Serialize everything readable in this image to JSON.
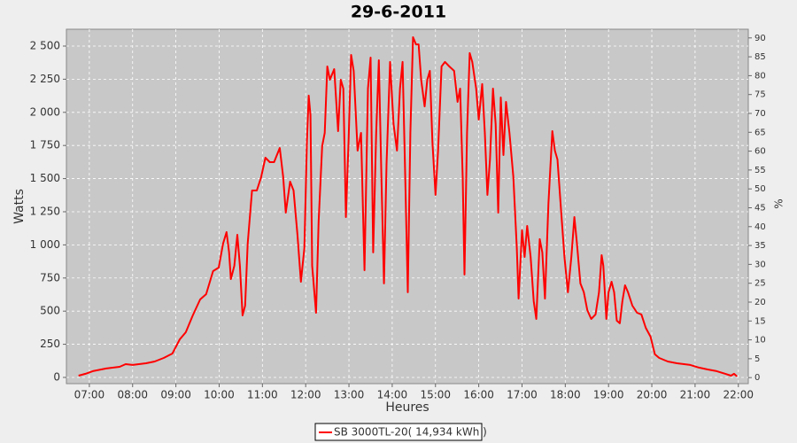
{
  "chart_data": {
    "type": "line",
    "title": "29-6-2011",
    "xlabel": "Heures",
    "ylabel": "Watts",
    "y2label": "%",
    "x": [
      6.75,
      6.91,
      7.08,
      7.39,
      7.7,
      7.84,
      8.0,
      8.31,
      8.51,
      8.72,
      8.92,
      9.09,
      9.23,
      9.39,
      9.56,
      9.7,
      9.86,
      9.99,
      10.09,
      10.17,
      10.23,
      10.27,
      10.35,
      10.42,
      10.48,
      10.54,
      10.6,
      10.66,
      10.76,
      10.87,
      10.97,
      11.07,
      11.17,
      11.27,
      11.4,
      11.48,
      11.54,
      11.64,
      11.72,
      11.81,
      11.89,
      11.97,
      12.03,
      12.07,
      12.11,
      12.15,
      12.24,
      12.3,
      12.38,
      12.44,
      12.5,
      12.56,
      12.66,
      12.75,
      12.81,
      12.87,
      12.93,
      12.99,
      13.05,
      13.11,
      13.2,
      13.28,
      13.36,
      13.44,
      13.5,
      13.56,
      13.63,
      13.69,
      13.75,
      13.81,
      13.87,
      13.95,
      14.03,
      14.11,
      14.18,
      14.24,
      14.3,
      14.36,
      14.42,
      14.48,
      14.55,
      14.61,
      14.67,
      14.75,
      14.81,
      14.87,
      14.93,
      15.0,
      15.06,
      15.14,
      15.22,
      15.32,
      15.43,
      15.51,
      15.57,
      15.63,
      15.67,
      15.73,
      15.79,
      15.85,
      15.94,
      16.0,
      16.08,
      16.14,
      16.2,
      16.26,
      16.33,
      16.39,
      16.45,
      16.51,
      16.57,
      16.63,
      16.71,
      16.8,
      16.88,
      16.92,
      17.0,
      17.06,
      17.12,
      17.2,
      17.27,
      17.33,
      17.41,
      17.47,
      17.53,
      17.61,
      17.7,
      17.76,
      17.82,
      17.9,
      17.98,
      18.06,
      18.14,
      18.21,
      18.27,
      18.35,
      18.43,
      18.51,
      18.6,
      18.7,
      18.78,
      18.84,
      18.88,
      18.95,
      19.0,
      19.07,
      19.13,
      19.19,
      19.26,
      19.32,
      19.38,
      19.45,
      19.55,
      19.66,
      19.76,
      19.86,
      19.97,
      20.07,
      20.17,
      20.37,
      20.58,
      20.89,
      21.09,
      21.29,
      21.5,
      21.7,
      21.83,
      21.9,
      21.97
    ],
    "series": [
      {
        "name": "SB 3000TL-20( 14,934 kWh )",
        "color": "#ff0000",
        "values": [
          13,
          27,
          47,
          67,
          80,
          100,
          94,
          107,
          120,
          147,
          180,
          287,
          341,
          468,
          588,
          628,
          802,
          829,
          1010,
          1096,
          943,
          742,
          842,
          1076,
          842,
          468,
          541,
          1010,
          1410,
          1410,
          1511,
          1658,
          1624,
          1624,
          1731,
          1511,
          1243,
          1477,
          1410,
          1076,
          722,
          976,
          1778,
          2126,
          1979,
          842,
          488,
          1176,
          1745,
          1845,
          2346,
          2246,
          2326,
          1858,
          2246,
          2179,
          1210,
          1778,
          2433,
          2313,
          1711,
          1845,
          809,
          2179,
          2413,
          943,
          1845,
          2393,
          1511,
          709,
          1611,
          2380,
          1912,
          1711,
          2179,
          2380,
          1511,
          642,
          1845,
          2567,
          2513,
          2513,
          2246,
          2045,
          2246,
          2313,
          1778,
          1377,
          1711,
          2346,
          2380,
          2346,
          2313,
          2079,
          2179,
          1511,
          776,
          1845,
          2447,
          2380,
          2179,
          1945,
          2213,
          1845,
          1377,
          1644,
          2179,
          1912,
          1243,
          2112,
          1678,
          2079,
          1845,
          1511,
          976,
          595,
          1110,
          909,
          1143,
          909,
          575,
          441,
          1043,
          943,
          595,
          1310,
          1858,
          1711,
          1644,
          1277,
          909,
          642,
          909,
          1210,
          1010,
          709,
          642,
          508,
          441,
          475,
          642,
          922,
          842,
          441,
          642,
          722,
          642,
          428,
          408,
          575,
          695,
          642,
          541,
          488,
          475,
          374,
          307,
          174,
          147,
          120,
          107,
          94,
          74,
          60,
          47,
          27,
          13,
          27,
          7
        ]
      }
    ],
    "xlim": [
      6.47,
      22.23
    ],
    "xticks": [
      {
        "value": 7,
        "label": "07:00"
      },
      {
        "value": 8,
        "label": "08:00"
      },
      {
        "value": 9,
        "label": "09:00"
      },
      {
        "value": 10,
        "label": "10:00"
      },
      {
        "value": 11,
        "label": "11:00"
      },
      {
        "value": 12,
        "label": "12:00"
      },
      {
        "value": 13,
        "label": "13:00"
      },
      {
        "value": 14,
        "label": "14:00"
      },
      {
        "value": 15,
        "label": "15:00"
      },
      {
        "value": 16,
        "label": "16:00"
      },
      {
        "value": 17,
        "label": "17:00"
      },
      {
        "value": 18,
        "label": "18:00"
      },
      {
        "value": 19,
        "label": "19:00"
      },
      {
        "value": 20,
        "label": "20:00"
      },
      {
        "value": 21,
        "label": "21:00"
      },
      {
        "value": 22,
        "label": "22:00"
      }
    ],
    "ylim": [
      -47,
      2627
    ],
    "yticks": [
      0,
      250,
      500,
      750,
      {
        "value": 1000,
        "label": "1 000"
      },
      {
        "value": 1250,
        "label": "1 250"
      },
      {
        "value": 1500,
        "label": "1 500"
      },
      {
        "value": 1750,
        "label": "1 750"
      },
      {
        "value": 2000,
        "label": "2 000"
      },
      {
        "value": 2250,
        "label": "2 250"
      },
      {
        "value": 2500,
        "label": "2 500"
      }
    ],
    "y2lim": [
      -1.6,
      92.3
    ],
    "y2ticks": [
      0,
      5,
      10,
      15,
      20,
      25,
      30,
      35,
      40,
      45,
      50,
      55,
      60,
      65,
      70,
      75,
      80,
      85,
      90
    ],
    "grid": true
  }
}
